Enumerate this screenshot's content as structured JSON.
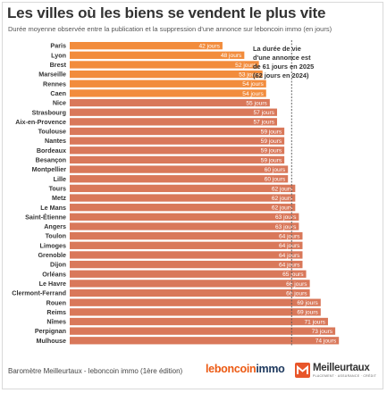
{
  "header": {
    "title": "Les villes où les biens se vendent le plus vite",
    "subtitle": "Durée moyenne observée entre la publication et la suppression d'une annonce sur leboncoin immo (en jours)"
  },
  "annotation": {
    "lines": [
      "La durée de vie",
      "d'une annonce est",
      "de 61 jours en 2025",
      "(62 jours en 2024)"
    ]
  },
  "footer": {
    "source": "Baromètre Meilleurtaux - leboncoin immo (1ère édition)",
    "logo_leboncoin_part1": "leboncoin",
    "logo_leboncoin_part2": "immo",
    "logo_meilleurtaux": "Meilleurtaux",
    "logo_meilleurtaux_tagline": "PLACEMENT · ASSURANCE · CRÉDIT"
  },
  "colors": {
    "top_bar": "#f28c3c",
    "bar": "#d9785a",
    "reference_line": "#555555"
  },
  "chart_data": {
    "type": "bar",
    "orientation": "horizontal",
    "unit_suffix": " jours",
    "reference_value": 61,
    "highlight_count": 6,
    "categories": [
      "Paris",
      "Lyon",
      "Brest",
      "Marseille",
      "Rennes",
      "Caen",
      "Nice",
      "Strasbourg",
      "Aix-en-Provence",
      "Toulouse",
      "Nantes",
      "Bordeaux",
      "Besançon",
      "Montpellier",
      "Lille",
      "Tours",
      "Metz",
      "Le Mans",
      "Saint-Étienne",
      "Angers",
      "Toulon",
      "Limoges",
      "Grenoble",
      "Dijon",
      "Orléans",
      "Le Havre",
      "Clermont-Ferrand",
      "Rouen",
      "Reims",
      "Nîmes",
      "Perpignan",
      "Mulhouse"
    ],
    "values": [
      42,
      48,
      52,
      53,
      54,
      54,
      55,
      57,
      57,
      59,
      59,
      59,
      59,
      60,
      60,
      62,
      62,
      62,
      63,
      63,
      64,
      64,
      64,
      64,
      65,
      66,
      66,
      69,
      69,
      71,
      73,
      74
    ],
    "labels": [
      "42 jours",
      "48 jours",
      "52 jours",
      "53 jours",
      "54 jours",
      "54 jours",
      "55 jours",
      "57 jours",
      "57 jours",
      "59 jours",
      "59 jours",
      "59 jours",
      "59 jours",
      "60 jours",
      "60 jours",
      "62 jours",
      "62 jours",
      "62 jours",
      "63 jours",
      "63 jours",
      "64 jours",
      "64 jours",
      "64 jours",
      "64 jours",
      "65 jours",
      "66 jours",
      "66 jours",
      "69 jours",
      "69 jours",
      "71 jours",
      "73 jours",
      "74 jours"
    ],
    "title": "Les villes où les biens se vendent le plus vite",
    "xlabel": "",
    "ylabel": "",
    "grid": false,
    "legend": "none"
  }
}
